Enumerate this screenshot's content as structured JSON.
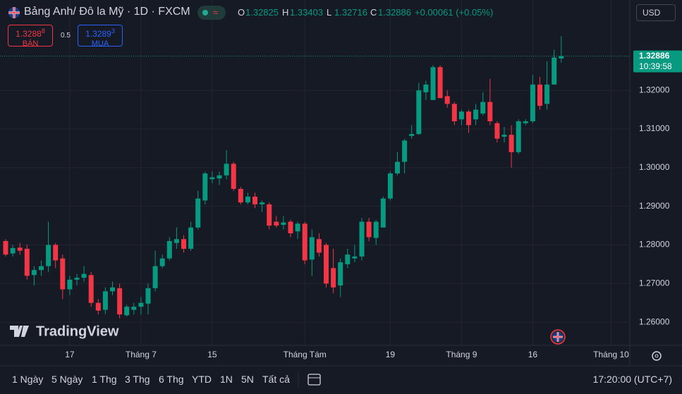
{
  "header": {
    "symbol": "Bảng Anh/ Đô la Mỹ · 1D · FXCM",
    "ohlc_labels": [
      "O",
      "H",
      "L",
      "C"
    ],
    "change": "+0.00061 (+0.05%)"
  },
  "trade": {
    "sell_price": "1.3288",
    "sell_pip": "8",
    "sell_label": "BÁN",
    "spread": "0.5",
    "buy_price": "1.3289",
    "buy_pip": "3",
    "buy_label": "MUA"
  },
  "currency": "USD",
  "countdown": "10:39:58",
  "brand": "TradingView",
  "toolbar": {
    "ranges": [
      "1 Ngày",
      "5 Ngày",
      "1 Thg",
      "3 Thg",
      "6 Thg",
      "YTD",
      "1N",
      "5N",
      "Tất cả"
    ],
    "clock": "17:20:00 (UTC+7)"
  },
  "chart_data": {
    "type": "candlestick",
    "categories": [
      null,
      null,
      null,
      null,
      null,
      null,
      null,
      null,
      null,
      "17",
      null,
      null,
      null,
      null,
      null,
      null,
      null,
      null,
      null,
      "Tháng 7",
      null,
      null,
      null,
      null,
      null,
      null,
      null,
      null,
      null,
      "15",
      null,
      null,
      null,
      null,
      null,
      null,
      null,
      null,
      null,
      null,
      null,
      null,
      "Tháng Tám",
      null,
      null,
      null,
      null,
      null,
      null,
      null,
      null,
      null,
      null,
      null,
      "19",
      null,
      null,
      null,
      null,
      null,
      null,
      null,
      null,
      null,
      "Tháng 9",
      null,
      null,
      null,
      null,
      null,
      null,
      null,
      null,
      null,
      "16",
      null,
      null,
      null,
      null,
      null,
      null,
      null,
      null,
      null,
      null,
      "Tháng 10",
      null,
      null
    ],
    "open": [
      1.281,
      1.2778,
      1.2793,
      1.279,
      1.2722,
      1.2735,
      1.2745,
      1.28,
      1.2765,
      1.2685,
      1.271,
      1.2715,
      1.2722,
      1.265,
      1.2632,
      1.268,
      1.2688,
      1.2618,
      1.2632,
      1.264,
      1.2648,
      1.2688,
      1.2745,
      1.2765,
      1.2805,
      1.2815,
      1.279,
      1.2845,
      1.2915,
      1.297,
      1.2972,
      1.298,
      1.301,
      1.2945,
      1.291,
      1.2925,
      1.2905,
      1.2905,
      1.286,
      1.2852,
      1.286,
      1.2835,
      1.2855,
      1.2762,
      1.2815,
      1.28,
      1.274,
      1.2695,
      1.275,
      1.2765,
      1.277,
      1.286,
      1.2818,
      1.2845,
      1.292,
      1.2985,
      1.3015,
      1.3082,
      1.3087,
      1.3195,
      1.3175,
      1.326,
      1.3185,
      1.3165,
      1.3125,
      1.3145,
      1.3125,
      1.314,
      1.317,
      1.3115,
      1.308,
      1.3085,
      1.304,
      1.3115,
      1.312,
      1.3215,
      1.3165,
      1.3215,
      1.32825,
      null,
      null,
      null,
      null,
      null,
      null,
      null,
      null,
      null
    ],
    "high": [
      1.2815,
      1.28,
      1.2805,
      1.28,
      1.2745,
      1.276,
      1.286,
      1.2805,
      1.2775,
      1.272,
      1.2725,
      1.2745,
      1.273,
      1.266,
      1.269,
      1.2705,
      1.27,
      1.2645,
      1.265,
      1.2665,
      1.27,
      1.2785,
      1.2775,
      1.282,
      1.2845,
      1.2825,
      1.286,
      1.294,
      1.299,
      1.299,
      1.299,
      1.3045,
      1.3015,
      1.295,
      1.2935,
      1.2935,
      1.2915,
      1.291,
      1.2875,
      1.2875,
      1.2865,
      1.286,
      1.286,
      1.284,
      1.283,
      1.2805,
      1.279,
      1.2765,
      1.279,
      1.28,
      1.287,
      1.287,
      1.2865,
      1.2925,
      1.299,
      1.304,
      1.3075,
      1.311,
      1.322,
      1.3225,
      1.3265,
      1.3265,
      1.32,
      1.317,
      1.315,
      1.315,
      1.3165,
      1.3195,
      1.323,
      1.312,
      1.3105,
      1.311,
      1.3125,
      1.3125,
      1.324,
      1.3235,
      1.3275,
      1.3305,
      1.33403,
      null,
      null,
      null,
      null,
      null,
      null,
      null,
      null,
      null
    ],
    "low": [
      1.277,
      1.277,
      1.2775,
      1.271,
      1.2695,
      1.272,
      1.273,
      1.274,
      1.266,
      1.267,
      1.2695,
      1.2705,
      1.264,
      1.262,
      1.262,
      1.267,
      1.261,
      1.2615,
      1.262,
      1.262,
      1.262,
      1.268,
      1.274,
      1.276,
      1.279,
      1.278,
      1.2785,
      1.284,
      1.2905,
      1.296,
      1.2955,
      1.297,
      1.294,
      1.2905,
      1.2905,
      1.2895,
      1.2885,
      1.284,
      1.2845,
      1.284,
      1.282,
      1.2815,
      1.275,
      1.272,
      1.277,
      1.269,
      1.2675,
      1.2665,
      1.274,
      1.2755,
      1.276,
      1.281,
      1.28,
      1.2845,
      1.2915,
      1.298,
      1.2985,
      1.3075,
      1.3085,
      1.3175,
      1.3175,
      1.318,
      1.3155,
      1.311,
      1.311,
      1.309,
      1.311,
      1.3135,
      1.311,
      1.3065,
      1.3065,
      1.3,
      1.3035,
      1.311,
      1.3115,
      1.315,
      1.315,
      1.3215,
      1.32716,
      null,
      null,
      null,
      null,
      null,
      null,
      null,
      null,
      null
    ],
    "close": [
      1.2775,
      1.2792,
      1.2785,
      1.272,
      1.2735,
      1.2745,
      1.28,
      1.276,
      1.2685,
      1.271,
      1.2715,
      1.2725,
      1.265,
      1.263,
      1.268,
      1.269,
      1.262,
      1.264,
      1.264,
      1.265,
      1.2688,
      1.2745,
      1.2765,
      1.281,
      1.2815,
      1.279,
      1.2845,
      1.292,
      1.2985,
      1.2975,
      1.298,
      1.301,
      1.2945,
      1.291,
      1.2925,
      1.2905,
      1.291,
      1.285,
      1.285,
      1.2858,
      1.283,
      1.2855,
      1.276,
      1.282,
      1.278,
      1.27,
      1.269,
      1.2755,
      1.2775,
      1.277,
      1.286,
      1.282,
      1.286,
      1.292,
      1.2985,
      1.3015,
      1.307,
      1.3087,
      1.32,
      1.3215,
      1.326,
      1.318,
      1.3165,
      1.312,
      1.3145,
      1.311,
      1.315,
      1.317,
      1.312,
      1.3075,
      1.3085,
      1.304,
      1.312,
      1.312,
      1.3215,
      1.316,
      1.3215,
      1.3285,
      1.32886,
      null,
      null,
      null,
      null,
      null,
      null,
      null,
      null,
      null
    ],
    "up_color": "#089981",
    "down_color": "#f23645",
    "ylim": [
      1.254,
      1.337
    ],
    "yticks": [
      {
        "value": 1.26,
        "label": "1.26000"
      },
      {
        "value": 1.27,
        "label": "1.27000"
      },
      {
        "value": 1.28,
        "label": "1.28000"
      },
      {
        "value": 1.29,
        "label": "1.29000"
      },
      {
        "value": 1.3,
        "label": "1.30000"
      },
      {
        "value": 1.31,
        "label": "1.31000"
      },
      {
        "value": 1.32,
        "label": "1.32000"
      }
    ],
    "grid": true
  }
}
